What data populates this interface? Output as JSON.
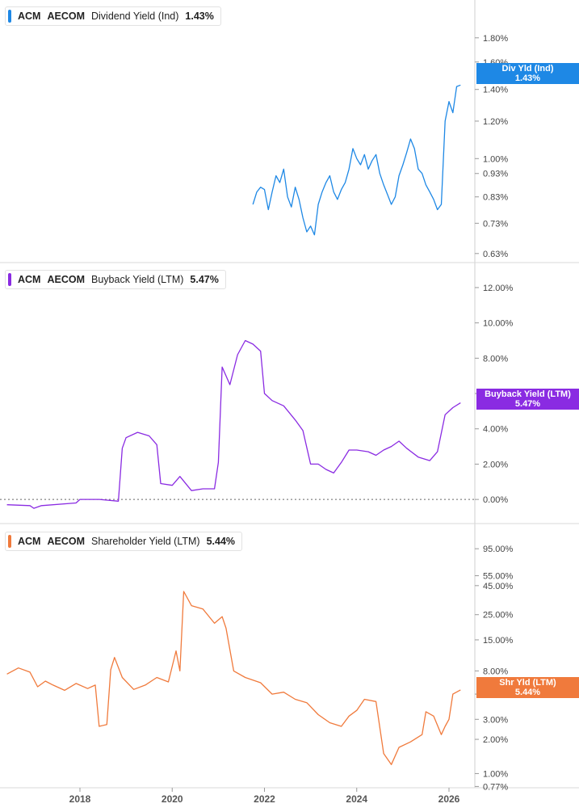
{
  "colors": {
    "dividend": "#1e88e5",
    "buyback": "#8a2be2",
    "shareholder": "#f07a3c",
    "grid": "#e6e6e6",
    "axis_text": "#444444",
    "zero_line": "#666666"
  },
  "x_axis": {
    "ticks": [
      "2018",
      "2020",
      "2022",
      "2024",
      "2026"
    ]
  },
  "chart_data": [
    {
      "type": "line",
      "ticker": "ACM",
      "company": "AECOM",
      "metric": "Dividend Yield (Ind)",
      "value": "1.43%",
      "tag": {
        "name": "Div Yld (Ind)",
        "value": "1.43%"
      },
      "y_scale": "log",
      "yticks": [
        "1.80%",
        "1.60%",
        "1.40%",
        "1.20%",
        "1.00%",
        "0.93%",
        "0.83%",
        "0.73%",
        "0.63%"
      ],
      "ylim": [
        0.61,
        2.0
      ],
      "series": [
        {
          "points": [
            [
              "2021-10",
              0.8
            ],
            [
              "2021-11",
              0.85
            ],
            [
              "2021-12",
              0.87
            ],
            [
              "2022-01",
              0.86
            ],
            [
              "2022-02",
              0.78
            ],
            [
              "2022-03",
              0.85
            ],
            [
              "2022-04",
              0.92
            ],
            [
              "2022-05",
              0.89
            ],
            [
              "2022-06",
              0.95
            ],
            [
              "2022-07",
              0.83
            ],
            [
              "2022-08",
              0.79
            ],
            [
              "2022-09",
              0.87
            ],
            [
              "2022-10",
              0.82
            ],
            [
              "2022-11",
              0.75
            ],
            [
              "2022-12",
              0.7
            ],
            [
              "2023-01",
              0.72
            ],
            [
              "2023-02",
              0.69
            ],
            [
              "2023-03",
              0.8
            ],
            [
              "2023-04",
              0.85
            ],
            [
              "2023-05",
              0.89
            ],
            [
              "2023-06",
              0.92
            ],
            [
              "2023-07",
              0.85
            ],
            [
              "2023-08",
              0.82
            ],
            [
              "2023-09",
              0.86
            ],
            [
              "2023-10",
              0.89
            ],
            [
              "2023-11",
              0.95
            ],
            [
              "2023-12",
              1.05
            ],
            [
              "2024-01",
              1.0
            ],
            [
              "2024-02",
              0.97
            ],
            [
              "2024-03",
              1.02
            ],
            [
              "2024-04",
              0.95
            ],
            [
              "2024-05",
              0.99
            ],
            [
              "2024-06",
              1.02
            ],
            [
              "2024-07",
              0.93
            ],
            [
              "2024-08",
              0.88
            ],
            [
              "2024-09",
              0.84
            ],
            [
              "2024-10",
              0.8
            ],
            [
              "2024-11",
              0.83
            ],
            [
              "2024-12",
              0.92
            ],
            [
              "2025-01",
              0.97
            ],
            [
              "2025-02",
              1.03
            ],
            [
              "2025-03",
              1.1
            ],
            [
              "2025-04",
              1.05
            ],
            [
              "2025-05",
              0.95
            ],
            [
              "2025-06",
              0.93
            ],
            [
              "2025-07",
              0.88
            ],
            [
              "2025-08",
              0.85
            ],
            [
              "2025-09",
              0.82
            ],
            [
              "2025-10",
              0.78
            ],
            [
              "2025-11",
              0.8
            ],
            [
              "2025-12",
              1.2
            ],
            [
              "2026-01",
              1.32
            ],
            [
              "2026-02",
              1.25
            ],
            [
              "2026-03",
              1.42
            ],
            [
              "2026-04",
              1.43
            ]
          ]
        }
      ]
    },
    {
      "type": "line",
      "ticker": "ACM",
      "company": "AECOM",
      "metric": "Buyback Yield (LTM)",
      "value": "5.47%",
      "tag": {
        "name": "Buyback Yield (LTM)",
        "value": "5.47%"
      },
      "y_scale": "linear",
      "yticks": [
        "12.00%",
        "10.00%",
        "8.00%",
        "6.00%",
        "4.00%",
        "2.00%",
        "0.00%"
      ],
      "ylim": [
        -1.0,
        12.5
      ],
      "series": [
        {
          "points": [
            [
              "2016-06",
              -0.3
            ],
            [
              "2016-12",
              -0.35
            ],
            [
              "2017-01",
              -0.5
            ],
            [
              "2017-03",
              -0.35
            ],
            [
              "2017-12",
              -0.2
            ],
            [
              "2018-01",
              0.0
            ],
            [
              "2018-06",
              0.0
            ],
            [
              "2018-11",
              -0.1
            ],
            [
              "2018-12",
              2.9
            ],
            [
              "2019-01",
              3.5
            ],
            [
              "2019-04",
              3.8
            ],
            [
              "2019-07",
              3.6
            ],
            [
              "2019-09",
              3.1
            ],
            [
              "2019-10",
              0.9
            ],
            [
              "2020-01",
              0.8
            ],
            [
              "2020-03",
              1.3
            ],
            [
              "2020-06",
              0.5
            ],
            [
              "2020-09",
              0.6
            ],
            [
              "2020-12",
              0.6
            ],
            [
              "2021-01",
              2.1
            ],
            [
              "2021-02",
              7.5
            ],
            [
              "2021-04",
              6.5
            ],
            [
              "2021-06",
              8.2
            ],
            [
              "2021-08",
              9.0
            ],
            [
              "2021-10",
              8.8
            ],
            [
              "2021-12",
              8.4
            ],
            [
              "2022-01",
              6.0
            ],
            [
              "2022-03",
              5.6
            ],
            [
              "2022-06",
              5.3
            ],
            [
              "2022-09",
              4.5
            ],
            [
              "2022-11",
              3.9
            ],
            [
              "2023-01",
              2.0
            ],
            [
              "2023-03",
              2.0
            ],
            [
              "2023-05",
              1.7
            ],
            [
              "2023-07",
              1.5
            ],
            [
              "2023-09",
              2.1
            ],
            [
              "2023-11",
              2.8
            ],
            [
              "2024-01",
              2.8
            ],
            [
              "2024-04",
              2.7
            ],
            [
              "2024-06",
              2.5
            ],
            [
              "2024-08",
              2.8
            ],
            [
              "2024-10",
              3.0
            ],
            [
              "2024-12",
              3.3
            ],
            [
              "2025-02",
              2.9
            ],
            [
              "2025-05",
              2.4
            ],
            [
              "2025-08",
              2.2
            ],
            [
              "2025-10",
              2.7
            ],
            [
              "2025-12",
              4.8
            ],
            [
              "2026-02",
              5.2
            ],
            [
              "2026-04",
              5.47
            ]
          ]
        }
      ]
    },
    {
      "type": "line",
      "ticker": "ACM",
      "company": "AECOM",
      "metric": "Shareholder Yield (LTM)",
      "value": "5.44%",
      "tag": {
        "name": "Shr Yld (LTM)",
        "value": "5.44%"
      },
      "y_scale": "log",
      "yticks": [
        "95.00%",
        "55.00%",
        "45.00%",
        "25.00%",
        "15.00%",
        "8.00%",
        "5.00%",
        "3.00%",
        "2.00%",
        "1.00%",
        "0.77%"
      ],
      "ylim": [
        0.75,
        130
      ],
      "series": [
        {
          "points": [
            [
              "2016-06",
              7.5
            ],
            [
              "2016-09",
              8.5
            ],
            [
              "2016-12",
              7.8
            ],
            [
              "2017-02",
              5.8
            ],
            [
              "2017-04",
              6.5
            ],
            [
              "2017-06",
              6.0
            ],
            [
              "2017-09",
              5.4
            ],
            [
              "2017-12",
              6.2
            ],
            [
              "2018-03",
              5.6
            ],
            [
              "2018-05",
              6.0
            ],
            [
              "2018-06",
              2.6
            ],
            [
              "2018-08",
              2.7
            ],
            [
              "2018-09",
              8.2
            ],
            [
              "2018-10",
              10.5
            ],
            [
              "2018-12",
              7.0
            ],
            [
              "2019-03",
              5.5
            ],
            [
              "2019-06",
              6.0
            ],
            [
              "2019-09",
              7.0
            ],
            [
              "2019-12",
              6.4
            ],
            [
              "2020-02",
              12.0
            ],
            [
              "2020-03",
              8.0
            ],
            [
              "2020-04",
              40.0
            ],
            [
              "2020-06",
              30.0
            ],
            [
              "2020-09",
              28.0
            ],
            [
              "2020-12",
              21.0
            ],
            [
              "2021-02",
              24.0
            ],
            [
              "2021-03",
              19.0
            ],
            [
              "2021-05",
              8.0
            ],
            [
              "2021-08",
              7.0
            ],
            [
              "2021-12",
              6.3
            ],
            [
              "2022-03",
              5.0
            ],
            [
              "2022-06",
              5.2
            ],
            [
              "2022-09",
              4.5
            ],
            [
              "2022-12",
              4.2
            ],
            [
              "2023-03",
              3.3
            ],
            [
              "2023-06",
              2.8
            ],
            [
              "2023-09",
              2.6
            ],
            [
              "2023-11",
              3.2
            ],
            [
              "2024-01",
              3.6
            ],
            [
              "2024-03",
              4.5
            ],
            [
              "2024-06",
              4.3
            ],
            [
              "2024-08",
              1.5
            ],
            [
              "2024-10",
              1.2
            ],
            [
              "2024-12",
              1.7
            ],
            [
              "2025-03",
              1.9
            ],
            [
              "2025-06",
              2.2
            ],
            [
              "2025-07",
              3.5
            ],
            [
              "2025-09",
              3.2
            ],
            [
              "2025-11",
              2.2
            ],
            [
              "2025-12",
              2.6
            ],
            [
              "2026-01",
              3.0
            ],
            [
              "2026-02",
              5.0
            ],
            [
              "2026-04",
              5.44
            ]
          ]
        }
      ]
    }
  ]
}
